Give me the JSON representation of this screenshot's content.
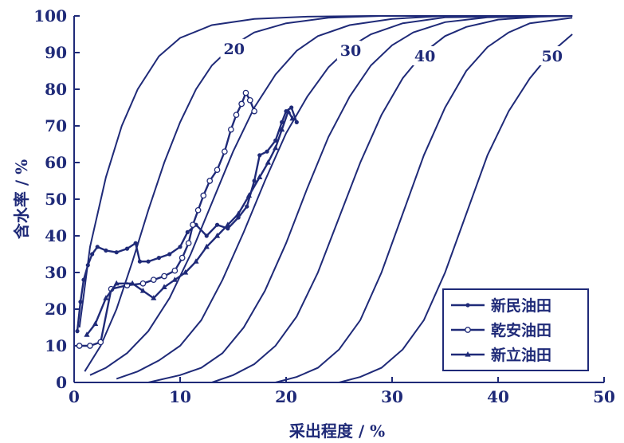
{
  "chart_data": {
    "type": "line",
    "xlabel": "采出程度 / %",
    "ylabel": "含水率 / %",
    "xlim": [
      0,
      50
    ],
    "ylim": [
      0,
      100
    ],
    "x_ticks": [
      0,
      10,
      20,
      30,
      40,
      50
    ],
    "y_ticks": [
      0,
      10,
      20,
      30,
      40,
      50,
      60,
      70,
      80,
      90,
      100
    ],
    "grid": false,
    "legend_position": "bottom-right",
    "colors": {
      "line": "#1f2a78",
      "background": "#ffffff"
    },
    "reference_curves": [
      {
        "label": "",
        "points": [
          [
            0.5,
            15
          ],
          [
            1.5,
            37
          ],
          [
            3,
            56
          ],
          [
            4.5,
            70
          ],
          [
            6,
            80
          ],
          [
            8,
            89
          ],
          [
            10,
            94
          ],
          [
            13,
            97.5
          ],
          [
            17,
            99.2
          ],
          [
            22,
            99.8
          ],
          [
            28,
            100
          ],
          [
            47,
            100
          ]
        ]
      },
      {
        "label": "20",
        "points": [
          [
            1,
            3
          ],
          [
            2.5,
            10
          ],
          [
            4,
            20
          ],
          [
            5.5,
            33
          ],
          [
            7,
            47
          ],
          [
            8.5,
            60
          ],
          [
            10,
            71
          ],
          [
            11.5,
            80
          ],
          [
            13,
            86.5
          ],
          [
            15,
            92
          ],
          [
            17,
            95.5
          ],
          [
            20,
            98
          ],
          [
            24,
            99.5
          ],
          [
            29,
            100
          ],
          [
            47,
            100
          ]
        ]
      },
      {
        "label": "",
        "points": [
          [
            1.5,
            2
          ],
          [
            3,
            4
          ],
          [
            5,
            8
          ],
          [
            7,
            14
          ],
          [
            9,
            23
          ],
          [
            11,
            35
          ],
          [
            13,
            49
          ],
          [
            15,
            63
          ],
          [
            17,
            75
          ],
          [
            19,
            84
          ],
          [
            21,
            90.5
          ],
          [
            23,
            94.5
          ],
          [
            26,
            97.5
          ],
          [
            30,
            99.2
          ],
          [
            35,
            100
          ],
          [
            47,
            100
          ]
        ]
      },
      {
        "label": "30",
        "points": [
          [
            4,
            1
          ],
          [
            6,
            3
          ],
          [
            8,
            6
          ],
          [
            10,
            10
          ],
          [
            12,
            17
          ],
          [
            14,
            28
          ],
          [
            16,
            41
          ],
          [
            18,
            55
          ],
          [
            20,
            68
          ],
          [
            22,
            78
          ],
          [
            24,
            86
          ],
          [
            26,
            91.5
          ],
          [
            28,
            95
          ],
          [
            31,
            98
          ],
          [
            35,
            99.6
          ],
          [
            47,
            100
          ]
        ]
      },
      {
        "label": "",
        "points": [
          [
            7,
            0
          ],
          [
            10,
            2
          ],
          [
            12,
            4
          ],
          [
            14,
            8
          ],
          [
            16,
            15
          ],
          [
            18,
            25
          ],
          [
            20,
            38
          ],
          [
            22,
            53
          ],
          [
            24,
            67
          ],
          [
            26,
            78
          ],
          [
            28,
            86.5
          ],
          [
            30,
            92
          ],
          [
            32,
            95.5
          ],
          [
            35,
            98.3
          ],
          [
            39,
            99.6
          ],
          [
            47,
            100
          ]
        ]
      },
      {
        "label": "40",
        "points": [
          [
            13,
            0
          ],
          [
            15,
            2
          ],
          [
            17,
            5
          ],
          [
            19,
            10
          ],
          [
            21,
            18
          ],
          [
            23,
            30
          ],
          [
            25,
            45
          ],
          [
            27,
            60
          ],
          [
            29,
            73
          ],
          [
            31,
            83
          ],
          [
            33,
            90
          ],
          [
            35,
            94.5
          ],
          [
            37,
            97
          ],
          [
            40,
            99
          ],
          [
            44,
            99.8
          ],
          [
            47,
            100
          ]
        ]
      },
      {
        "label": "",
        "points": [
          [
            19,
            0
          ],
          [
            21,
            1.5
          ],
          [
            23,
            4
          ],
          [
            25,
            9
          ],
          [
            27,
            17
          ],
          [
            29,
            30
          ],
          [
            31,
            46
          ],
          [
            33,
            62
          ],
          [
            35,
            75
          ],
          [
            37,
            85
          ],
          [
            39,
            91.5
          ],
          [
            41,
            95.5
          ],
          [
            43,
            98
          ],
          [
            47,
            99.5
          ]
        ]
      },
      {
        "label": "50",
        "points": [
          [
            25,
            0
          ],
          [
            27,
            1.5
          ],
          [
            29,
            4
          ],
          [
            31,
            9
          ],
          [
            33,
            17
          ],
          [
            35,
            30
          ],
          [
            37,
            46
          ],
          [
            39,
            62
          ],
          [
            41,
            74
          ],
          [
            43,
            83
          ],
          [
            45,
            90
          ],
          [
            47,
            95
          ]
        ]
      }
    ],
    "series": [
      {
        "name": "新民油田",
        "marker": "filled-circle",
        "points": [
          [
            0.3,
            14
          ],
          [
            0.6,
            22
          ],
          [
            0.9,
            28
          ],
          [
            1.3,
            32
          ],
          [
            1.7,
            35
          ],
          [
            2.2,
            37
          ],
          [
            3,
            36
          ],
          [
            4,
            35.5
          ],
          [
            5,
            36.5
          ],
          [
            5.8,
            38
          ],
          [
            6.2,
            33
          ],
          [
            7,
            33
          ],
          [
            8,
            34
          ],
          [
            9,
            35
          ],
          [
            10,
            37
          ],
          [
            10.7,
            41
          ],
          [
            11.5,
            43
          ],
          [
            12.5,
            40
          ],
          [
            13.5,
            43
          ],
          [
            14.5,
            42
          ],
          [
            15.5,
            45
          ],
          [
            16.3,
            48
          ],
          [
            17,
            55
          ],
          [
            17.5,
            62
          ],
          [
            18.2,
            63
          ],
          [
            19,
            66
          ],
          [
            19.6,
            71
          ],
          [
            20,
            74
          ],
          [
            20.5,
            75
          ],
          [
            21,
            71
          ]
        ]
      },
      {
        "name": "乾安油田",
        "marker": "open-circle",
        "points": [
          [
            0.5,
            10
          ],
          [
            1.5,
            10
          ],
          [
            2.5,
            11
          ],
          [
            3.5,
            25.5
          ],
          [
            5,
            26.5
          ],
          [
            6.5,
            27
          ],
          [
            7.5,
            28
          ],
          [
            8.5,
            29
          ],
          [
            9.5,
            30.5
          ],
          [
            10.2,
            34
          ],
          [
            10.8,
            38
          ],
          [
            11.2,
            43
          ],
          [
            11.7,
            47
          ],
          [
            12.2,
            51
          ],
          [
            12.8,
            55
          ],
          [
            13.5,
            58
          ],
          [
            14.2,
            63
          ],
          [
            14.8,
            69
          ],
          [
            15.3,
            73
          ],
          [
            15.8,
            76
          ],
          [
            16.2,
            79
          ],
          [
            16.6,
            77
          ],
          [
            17,
            74
          ]
        ]
      },
      {
        "name": "新立油田",
        "marker": "triangle",
        "points": [
          [
            1.2,
            13
          ],
          [
            2,
            16
          ],
          [
            3,
            23
          ],
          [
            4,
            27
          ],
          [
            5.5,
            27
          ],
          [
            6.5,
            25
          ],
          [
            7.5,
            23
          ],
          [
            8.5,
            26
          ],
          [
            9.5,
            28
          ],
          [
            10.5,
            30
          ],
          [
            11.5,
            33
          ],
          [
            12.5,
            37
          ],
          [
            13.5,
            40
          ],
          [
            14.5,
            43
          ],
          [
            15.5,
            46
          ],
          [
            16.5,
            51
          ],
          [
            17.5,
            56
          ],
          [
            18.3,
            60
          ],
          [
            19,
            64
          ],
          [
            19.6,
            69
          ],
          [
            20.2,
            74
          ],
          [
            20.6,
            72
          ]
        ]
      }
    ]
  }
}
